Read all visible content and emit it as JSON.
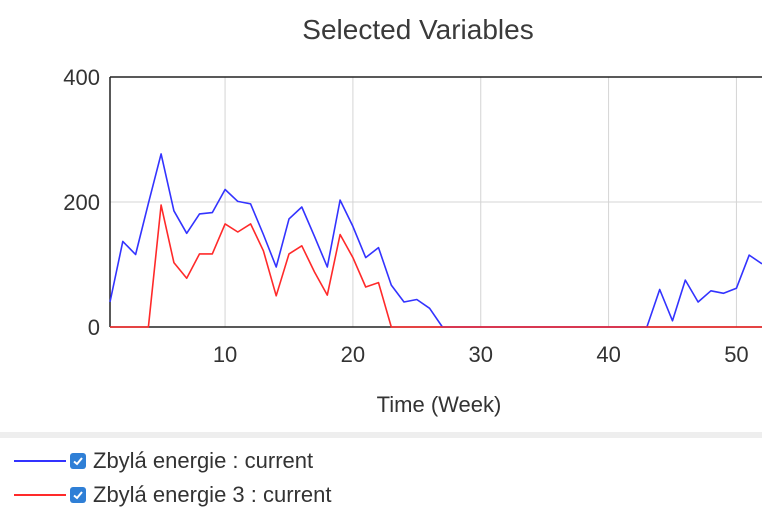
{
  "chart_data": {
    "type": "line",
    "title": "Selected Variables",
    "xlabel": "Time (Week)",
    "ylabel": "",
    "xlim": [
      1,
      52
    ],
    "ylim": [
      0,
      400
    ],
    "x_ticks": [
      10,
      20,
      30,
      40,
      50
    ],
    "x_tick_labels": [
      "10",
      "20",
      "30",
      "40",
      "50"
    ],
    "y_ticks": [
      0,
      200,
      400
    ],
    "y_tick_labels": [
      "0",
      "200",
      "400"
    ],
    "grid": true,
    "legend_position": "bottom-left",
    "series": [
      {
        "name": "Zbylá energie : current",
        "color": "#3333ff",
        "x": [
          1,
          2,
          3,
          4,
          5,
          6,
          7,
          8,
          9,
          10,
          11,
          12,
          13,
          14,
          15,
          16,
          17,
          18,
          19,
          20,
          21,
          22,
          23,
          24,
          25,
          26,
          27,
          28,
          29,
          30,
          31,
          32,
          33,
          34,
          35,
          36,
          37,
          38,
          39,
          40,
          41,
          42,
          43,
          44,
          45,
          46,
          47,
          48,
          49,
          50,
          51,
          52
        ],
        "values": [
          40,
          137,
          116,
          198,
          277,
          186,
          150,
          181,
          183,
          220,
          201,
          197,
          148,
          96,
          173,
          192,
          145,
          96,
          203,
          161,
          111,
          127,
          67,
          40,
          44,
          30,
          0,
          0,
          0,
          0,
          0,
          0,
          0,
          0,
          0,
          0,
          0,
          0,
          0,
          0,
          0,
          0,
          0,
          60,
          10,
          75,
          40,
          58,
          54,
          62,
          115,
          101
        ]
      },
      {
        "name": "Zbylá energie 3 : current",
        "color": "#ff2a2a",
        "x": [
          1,
          2,
          3,
          4,
          5,
          6,
          7,
          8,
          9,
          10,
          11,
          12,
          13,
          14,
          15,
          16,
          17,
          18,
          19,
          20,
          21,
          22,
          23,
          24,
          25,
          26,
          27,
          28,
          29,
          30,
          31,
          32,
          33,
          34,
          35,
          36,
          37,
          38,
          39,
          40,
          41,
          42,
          43,
          44,
          45,
          46,
          47,
          48,
          49,
          50,
          51,
          52
        ],
        "values": [
          0,
          0,
          0,
          0,
          195,
          103,
          78,
          117,
          117,
          165,
          152,
          165,
          122,
          50,
          117,
          130,
          88,
          51,
          148,
          111,
          64,
          71,
          0,
          0,
          0,
          0,
          0,
          0,
          0,
          0,
          0,
          0,
          0,
          0,
          0,
          0,
          0,
          0,
          0,
          0,
          0,
          0,
          0,
          0,
          0,
          0,
          0,
          0,
          0,
          0,
          0,
          0
        ]
      }
    ]
  }
}
